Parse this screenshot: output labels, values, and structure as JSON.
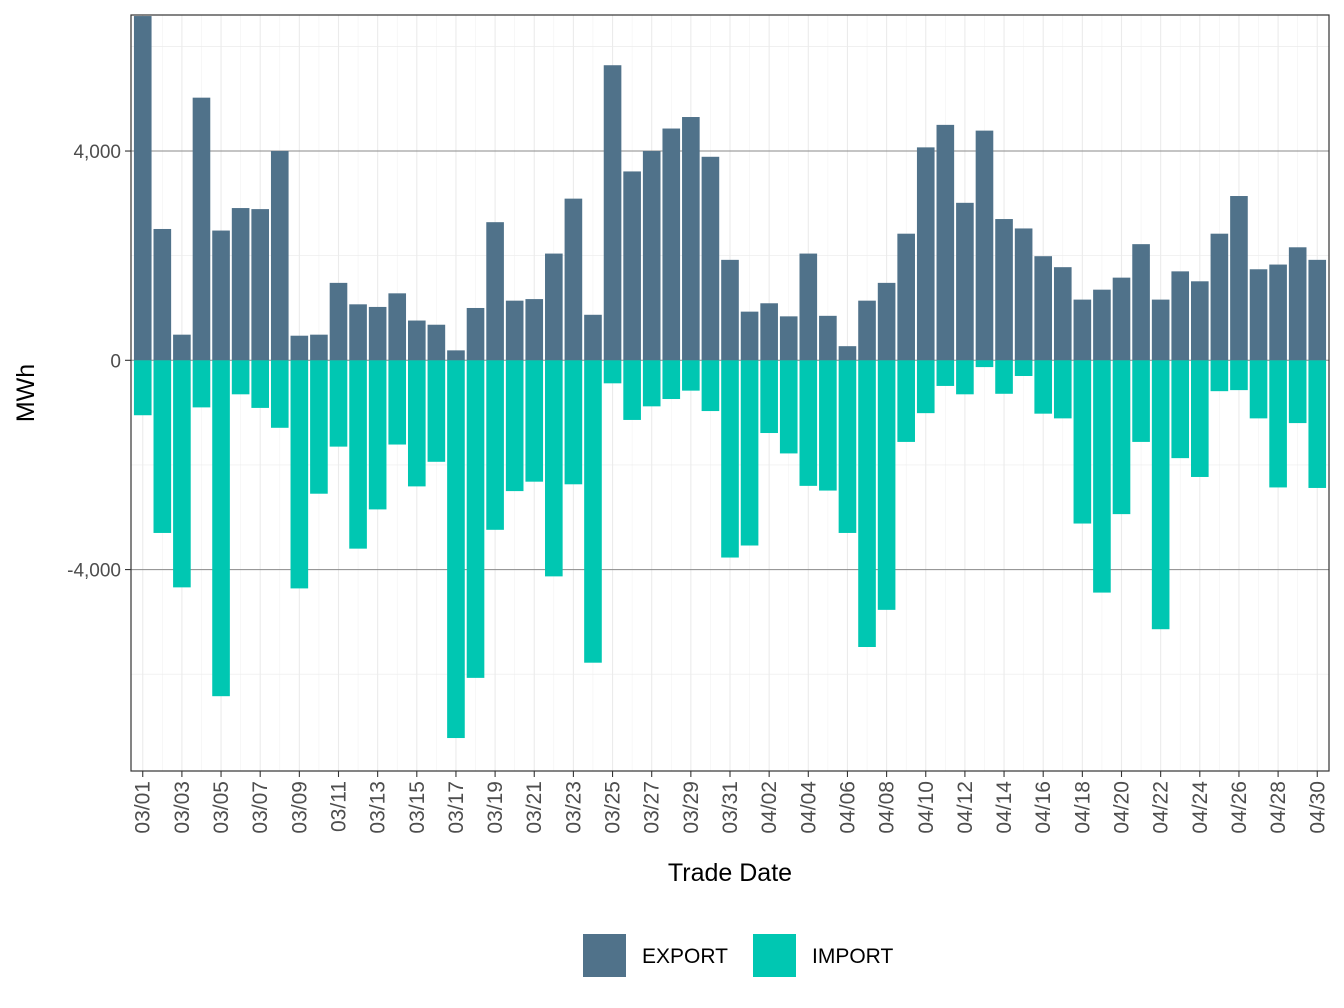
{
  "chart_data": {
    "type": "bar",
    "stacked": "diverging",
    "title": "",
    "xlabel": "Trade Date",
    "ylabel": "MWh",
    "ylim": [
      -7850,
      6600
    ],
    "yticks": [
      -4000,
      0,
      4000
    ],
    "ytick_labels": [
      "-4,000",
      "0",
      "4,000"
    ],
    "categories": [
      "03/01",
      "03/02",
      "03/03",
      "03/04",
      "03/05",
      "03/06",
      "03/07",
      "03/08",
      "03/09",
      "03/10",
      "03/11",
      "03/12",
      "03/13",
      "03/14",
      "03/15",
      "03/16",
      "03/17",
      "03/18",
      "03/19",
      "03/20",
      "03/21",
      "03/22",
      "03/23",
      "03/24",
      "03/25",
      "03/26",
      "03/27",
      "03/28",
      "03/29",
      "03/30",
      "03/31",
      "04/01",
      "04/02",
      "04/03",
      "04/04",
      "04/05",
      "04/06",
      "04/07",
      "04/08",
      "04/09",
      "04/10",
      "04/11",
      "04/12",
      "04/13",
      "04/14",
      "04/15",
      "04/16",
      "04/17",
      "04/18",
      "04/19",
      "04/20",
      "04/21",
      "04/22",
      "04/23",
      "04/24",
      "04/25",
      "04/26",
      "04/27",
      "04/28",
      "04/29",
      "04/30"
    ],
    "xtick_labels": [
      "03/01",
      "03/03",
      "03/05",
      "03/07",
      "03/09",
      "03/11",
      "03/13",
      "03/15",
      "03/17",
      "03/19",
      "03/21",
      "03/23",
      "03/25",
      "03/27",
      "03/29",
      "03/31",
      "04/02",
      "04/04",
      "04/06",
      "04/08",
      "04/10",
      "04/12",
      "04/14",
      "04/16",
      "04/18",
      "04/20",
      "04/22",
      "04/24",
      "04/26",
      "04/28",
      "04/30"
    ],
    "series": [
      {
        "name": "EXPORT",
        "color": "#50728a",
        "values": [
          6580,
          2510,
          490,
          5020,
          2480,
          2910,
          2890,
          4000,
          470,
          490,
          1480,
          1070,
          1020,
          1280,
          760,
          680,
          190,
          1000,
          2640,
          1140,
          1170,
          2040,
          3090,
          870,
          5640,
          3610,
          4000,
          4430,
          4650,
          3890,
          1920,
          930,
          1090,
          840,
          2040,
          850,
          270,
          1140,
          1480,
          2420,
          4070,
          4500,
          3010,
          4390,
          2700,
          2520,
          1990,
          1780,
          1160,
          1350,
          1580,
          2220,
          1160,
          1700,
          1510,
          2420,
          3140,
          1740,
          1830,
          2160,
          1920
        ]
      },
      {
        "name": "IMPORT",
        "color": "#00c7b2",
        "values": [
          -1050,
          -3300,
          -4340,
          -900,
          -6420,
          -650,
          -910,
          -1290,
          -4360,
          -2550,
          -1650,
          -3600,
          -2850,
          -1610,
          -2410,
          -1940,
          -7220,
          -6070,
          -3240,
          -2500,
          -2320,
          -4130,
          -2370,
          -5780,
          -440,
          -1140,
          -880,
          -740,
          -580,
          -970,
          -3770,
          -3540,
          -1390,
          -1780,
          -2400,
          -2490,
          -3300,
          -5480,
          -4770,
          -1560,
          -1010,
          -490,
          -650,
          -130,
          -640,
          -300,
          -1020,
          -1110,
          -3120,
          -4440,
          -2940,
          -1560,
          -5140,
          -1870,
          -2230,
          -590,
          -570,
          -1110,
          -2430,
          -1200,
          -2440
        ]
      }
    ],
    "legend": {
      "position": "bottom",
      "entries": [
        "EXPORT",
        "IMPORT"
      ]
    },
    "grid": true
  }
}
